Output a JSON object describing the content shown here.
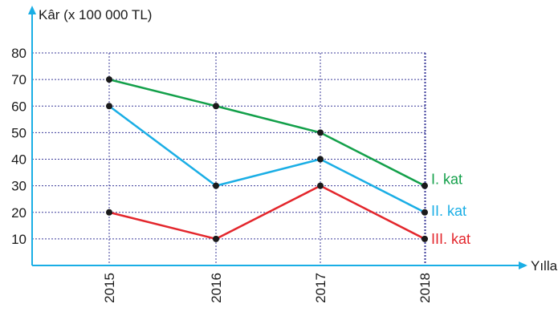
{
  "chart_data": {
    "type": "line",
    "ylabel": "Kâr (x 100 000 TL)",
    "xlabel": "Yıllar",
    "categories": [
      "2015",
      "2016",
      "2017",
      "2018"
    ],
    "y_ticks": [
      10,
      20,
      30,
      40,
      50,
      60,
      70,
      80
    ],
    "ylim": [
      0,
      80
    ],
    "grid": true,
    "series": [
      {
        "name": "I. kat",
        "values": [
          70,
          60,
          50,
          30
        ],
        "color": "#13a04a"
      },
      {
        "name": "II. kat",
        "values": [
          60,
          30,
          40,
          20
        ],
        "color": "#1aaee5"
      },
      {
        "name": "III. kat",
        "values": [
          20,
          10,
          30,
          10
        ],
        "color": "#e3262c"
      }
    ],
    "legend_placement": "right, at series line ends",
    "axis_color": "#1aaee5",
    "grid_color": "#3b3b9a",
    "marker_color": "#1a1a1a"
  }
}
